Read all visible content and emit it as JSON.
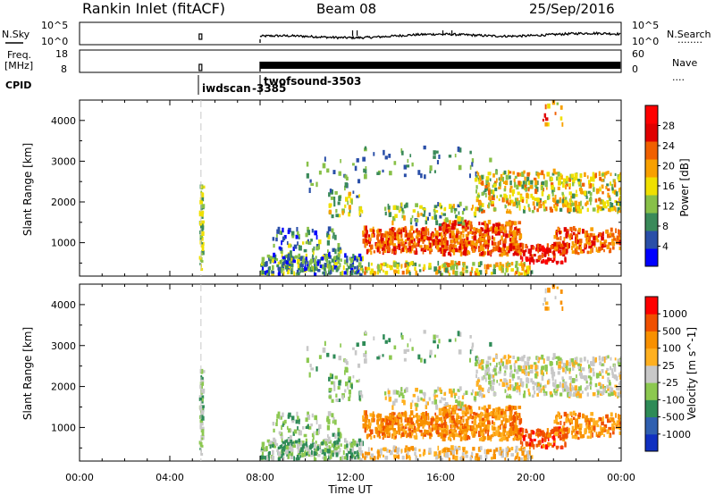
{
  "header": {
    "station": "Rankin Inlet (fitACF)",
    "beam": "Beam 08",
    "date": "25/Sep/2016"
  },
  "summary": {
    "left_labels": {
      "nsky": "N.Sky",
      "freq_line1": "Freq.",
      "freq_line2": "[MHz]",
      "cpid": "CPID"
    },
    "right_labels": {
      "nsearch": "N.Search",
      "nave": "Nave"
    },
    "noise_ticks_left": [
      "10^5",
      "10^0"
    ],
    "noise_ticks_right": [
      "10^5",
      "10^0"
    ],
    "freq_ticks": [
      "18",
      "8"
    ],
    "nave_ticks": [
      "60",
      "0"
    ],
    "cpid_entries": [
      {
        "name": "iwdscan",
        "id": "-3385",
        "start": "05:20"
      },
      {
        "name": "twofsound",
        "id": "-3503",
        "start": "08:00"
      }
    ],
    "nsearch_marker": "........",
    "nave_marker": "...."
  },
  "colors": {
    "power_scale": [
      "#0000ff",
      "#2a4fa8",
      "#3a8a5a",
      "#88c048",
      "#f0e000",
      "#f8a000",
      "#f06000",
      "#e00000",
      "#ff0000"
    ],
    "velocity_scale": [
      "#ff0000",
      "#f05000",
      "#f89000",
      "#ffb020",
      "#c8c8c8",
      "#8cc850",
      "#2e8b57",
      "#3060b0",
      "#1030c0"
    ]
  },
  "chart_data": [
    {
      "type": "heatmap",
      "title": "Power",
      "xlabel": "Time UT",
      "ylabel": "Slant Range [km]",
      "x_ticks": [
        "00:00",
        "04:00",
        "08:00",
        "12:00",
        "16:00",
        "20:00",
        "00:00"
      ],
      "y_ticks": [
        "1000",
        "2000",
        "3000",
        "4000"
      ],
      "ylim": [
        180,
        4500
      ],
      "colorbar_label": "Power [dB]",
      "colorbar_ticks": [
        "4",
        "8",
        "12",
        "16",
        "20",
        "24",
        "28"
      ],
      "clim": [
        0,
        30
      ],
      "data_description": "Backscatter present 05:20-05:30 UT near 300-2400 km; continuous from 08:00 UT: ground scatter 200-600 km, F-region 800-1300 km strongest (~24-30 dB) between 12:00 and 22:00 UT, patches 1700-2600 km"
    },
    {
      "type": "heatmap",
      "title": "Velocity",
      "xlabel": "Time UT",
      "ylabel": "Slant Range [km]",
      "x_ticks": [
        "00:00",
        "04:00",
        "08:00",
        "12:00",
        "16:00",
        "20:00",
        "00:00"
      ],
      "y_ticks": [
        "1000",
        "2000",
        "3000",
        "4000"
      ],
      "ylim": [
        180,
        4500
      ],
      "colorbar_label": "Velocity [m s^-1]",
      "colorbar_ticks": [
        "1000",
        "500",
        "100",
        "25",
        "-25",
        "-100",
        "-500",
        "-1000"
      ],
      "clim": [
        -1000,
        1000
      ],
      "data_description": "Mostly negative velocities (-100 to -500 m/s, orange) between 800-1400 km from 12:00-21:00 UT; near-zero ground scatter (grey) at 1500-3000 km after 14:00 UT"
    }
  ]
}
